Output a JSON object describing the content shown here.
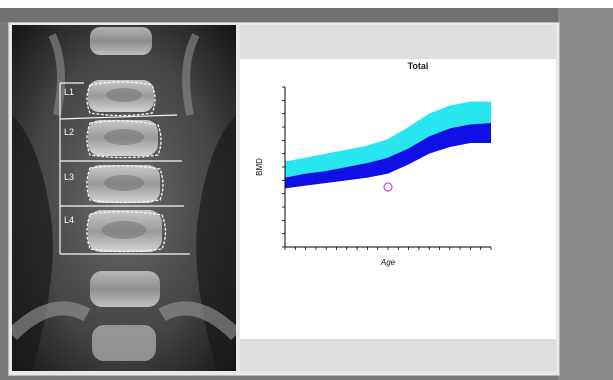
{
  "scan_labels": [
    "L1",
    "L2",
    "L3",
    "L4"
  ],
  "chart": {
    "title": "Total",
    "ylabel": "BMD",
    "xlabel": "Age"
  },
  "colors": {
    "band_light": "#27e6ef",
    "band_dark": "#1010e6",
    "plot_bg": "#ffffff",
    "marker": "#e23ee8"
  },
  "chart_data": {
    "type": "area",
    "title": "Total",
    "xlabel": "Age",
    "ylabel": "BMD",
    "x": [
      0,
      10,
      20,
      30,
      40,
      50,
      60,
      70,
      80,
      90,
      100
    ],
    "series": [
      {
        "values": [
          0.64,
          0.67,
          0.7,
          0.73,
          0.76,
          0.81,
          0.9,
          1.0,
          1.06,
          1.09,
          1.09
        ]
      },
      {
        "values": [
          0.52,
          0.55,
          0.57,
          0.6,
          0.63,
          0.67,
          0.74,
          0.83,
          0.89,
          0.92,
          0.93
        ]
      },
      {
        "values": [
          0.44,
          0.46,
          0.48,
          0.5,
          0.52,
          0.55,
          0.62,
          0.7,
          0.75,
          0.78,
          0.78
        ]
      }
    ],
    "points": [
      {
        "x": 50,
        "y": 0.45
      }
    ],
    "xlim": [
      0,
      100
    ],
    "ylim": [
      0,
      1.2
    ]
  }
}
